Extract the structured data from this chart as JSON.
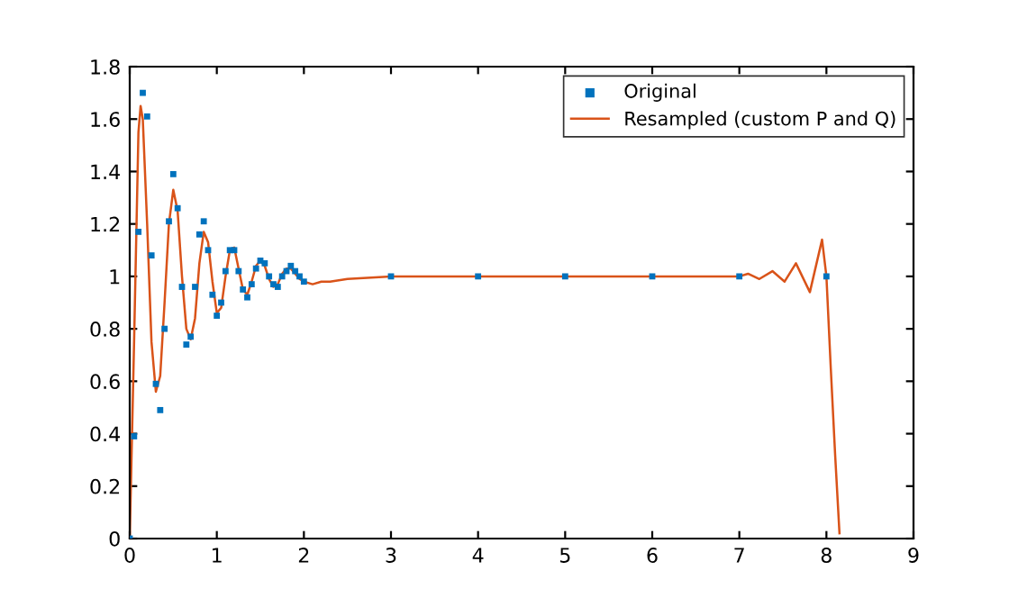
{
  "chart_data": {
    "type": "line",
    "series": [
      {
        "name": "Original",
        "type": "scatter",
        "color": "#0072bd",
        "marker": "square",
        "x": [
          0,
          0.05,
          0.1,
          0.15,
          0.2,
          0.25,
          0.3,
          0.35,
          0.4,
          0.45,
          0.5,
          0.55,
          0.6,
          0.65,
          0.7,
          0.75,
          0.8,
          0.85,
          0.9,
          0.95,
          1,
          1.05,
          1.1,
          1.15,
          1.2,
          1.25,
          1.3,
          1.35,
          1.4,
          1.45,
          1.5,
          1.55,
          1.6,
          1.65,
          1.7,
          1.75,
          1.8,
          1.85,
          1.9,
          1.95,
          2,
          3,
          4,
          5,
          6,
          7,
          8
        ],
        "values": [
          0,
          0.39,
          1.17,
          1.7,
          1.61,
          1.08,
          0.59,
          0.49,
          0.8,
          1.21,
          1.39,
          1.26,
          0.96,
          0.74,
          0.77,
          0.96,
          1.16,
          1.21,
          1.1,
          0.93,
          0.85,
          0.9,
          1.02,
          1.1,
          1.1,
          1.02,
          0.95,
          0.92,
          0.97,
          1.03,
          1.06,
          1.05,
          1,
          0.97,
          0.96,
          1,
          1.02,
          1.04,
          1.02,
          1,
          0.98,
          1,
          1,
          1,
          1,
          1,
          1
        ]
      },
      {
        "name": "Resampled (custom P and Q)",
        "color": "#d95319",
        "x": [
          0,
          0.05,
          0.1,
          0.125,
          0.15,
          0.2,
          0.25,
          0.3,
          0.35,
          0.4,
          0.45,
          0.5,
          0.55,
          0.6,
          0.65,
          0.7,
          0.75,
          0.8,
          0.85,
          0.9,
          0.95,
          1,
          1.05,
          1.1,
          1.15,
          1.2,
          1.25,
          1.3,
          1.35,
          1.4,
          1.45,
          1.5,
          1.55,
          1.6,
          1.65,
          1.7,
          1.75,
          1.8,
          1.85,
          1.9,
          1.95,
          2,
          2.1,
          2.2,
          2.3,
          2.5,
          3,
          4,
          5,
          6,
          7,
          7.1,
          7.23,
          7.38,
          7.52,
          7.65,
          7.81,
          7.95,
          8,
          8.05,
          8.1,
          8.15
        ],
        "values": [
          0,
          0.75,
          1.55,
          1.65,
          1.6,
          1.2,
          0.75,
          0.56,
          0.62,
          0.9,
          1.2,
          1.33,
          1.25,
          1,
          0.8,
          0.76,
          0.84,
          1.05,
          1.17,
          1.13,
          0.98,
          0.86,
          0.88,
          1,
          1.1,
          1.11,
          1.03,
          0.95,
          0.93,
          0.98,
          1.04,
          1.06,
          1.04,
          0.99,
          0.96,
          0.97,
          1.01,
          1.03,
          1.03,
          1.01,
          0.99,
          0.98,
          0.97,
          0.98,
          0.98,
          0.99,
          1,
          1,
          1,
          1,
          1,
          1.01,
          0.99,
          1.02,
          0.98,
          1.05,
          0.94,
          1.14,
          1,
          0.65,
          0.32,
          0.02
        ]
      }
    ],
    "xlim": [
      0,
      9
    ],
    "xticks": [
      0,
      1,
      2,
      3,
      4,
      5,
      6,
      7,
      8,
      9
    ],
    "ylim": [
      0,
      1.8
    ],
    "yticks": [
      0,
      0.2,
      0.4,
      0.6,
      0.8,
      1,
      1.2,
      1.4,
      1.6,
      1.8
    ],
    "grid": false,
    "legend": "top right"
  }
}
